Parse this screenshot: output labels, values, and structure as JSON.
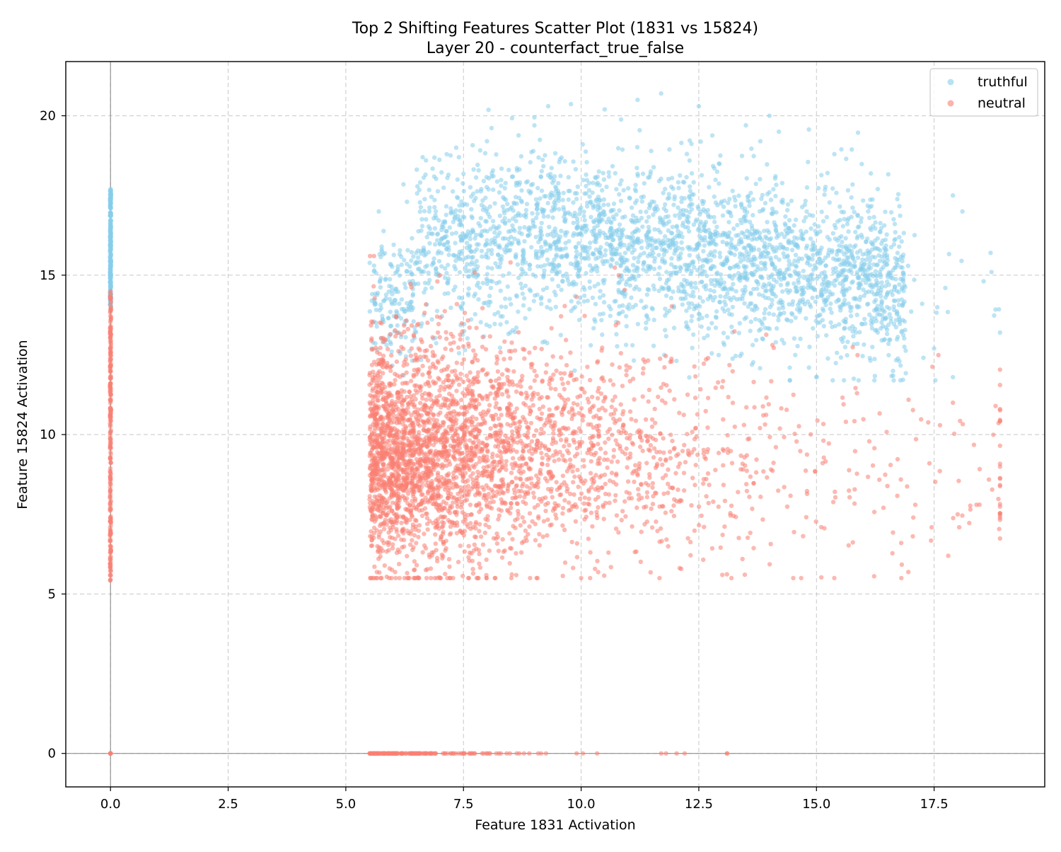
{
  "chart_data": {
    "type": "scatter",
    "title": "Top 2 Shifting Features Scatter Plot (1831 vs 15824)",
    "subtitle": "Layer 20 - counterfact_true_false",
    "xlabel": "Feature 1831 Activation",
    "ylabel": "Feature 15824 Activation",
    "xlim": [
      -0.95,
      19.85
    ],
    "ylim": [
      -1.05,
      21.7
    ],
    "xticks": [
      0.0,
      2.5,
      5.0,
      7.5,
      10.0,
      12.5,
      15.0,
      17.5
    ],
    "xtick_labels": [
      "0.0",
      "2.5",
      "5.0",
      "7.5",
      "10.0",
      "12.5",
      "15.0",
      "17.5"
    ],
    "yticks": [
      0,
      5,
      10,
      15,
      20
    ],
    "ytick_labels": [
      "0",
      "5",
      "10",
      "15",
      "20"
    ],
    "grid": true,
    "reference_lines": {
      "x": 0,
      "y": 0
    },
    "legend_position": "top-right",
    "series": [
      {
        "name": "truthful",
        "color": "#87ceeb",
        "clusters": [
          {
            "shape": "vertical-line",
            "x": 0.0,
            "y_range": [
              14.0,
              17.7
            ]
          },
          {
            "shape": "cloud",
            "x_range": [
              5.5,
              18.9
            ],
            "y_range": [
              11.7,
              20.7
            ],
            "center": [
              11.0,
              15.8
            ]
          }
        ],
        "sample_points": [
          [
            0,
            17.7
          ],
          [
            0,
            16.9
          ],
          [
            9.3,
            20.3
          ],
          [
            10.5,
            20.2
          ],
          [
            11.2,
            20.5
          ],
          [
            11.7,
            20.7
          ],
          [
            12.5,
            20.3
          ],
          [
            14.0,
            20.0
          ],
          [
            14.2,
            19.5
          ],
          [
            17.9,
            17.5
          ],
          [
            18.1,
            17.0
          ],
          [
            18.7,
            15.7
          ],
          [
            18.9,
            13.2
          ],
          [
            17.9,
            11.8
          ],
          [
            17.5,
            12.7
          ],
          [
            15.0,
            11.8
          ],
          [
            5.6,
            15.3
          ],
          [
            5.7,
            17.0
          ],
          [
            6.3,
            17.3
          ],
          [
            8.0,
            19.2
          ],
          [
            13.5,
            19.7
          ],
          [
            16.5,
            14.0
          ]
        ]
      },
      {
        "name": "neutral",
        "color": "#fa8072",
        "clusters": [
          {
            "shape": "vertical-line",
            "x": 0.0,
            "y_range": [
              5.4,
              14.5
            ]
          },
          {
            "shape": "cloud",
            "x_range": [
              5.5,
              18.9
            ],
            "y_range": [
              5.5,
              15.6
            ],
            "center": [
              8.0,
              9.5
            ]
          },
          {
            "shape": "horizontal-line",
            "y": 0.0,
            "x_range": [
              5.5,
              13.1
            ]
          },
          {
            "point": [
              0.0,
              0.0
            ]
          }
        ],
        "sample_points": [
          [
            0,
            0
          ],
          [
            13.1,
            0
          ],
          [
            12.2,
            0
          ],
          [
            11.7,
            0
          ],
          [
            5.6,
            15.6
          ],
          [
            7.0,
            15.0
          ],
          [
            8.5,
            15.4
          ],
          [
            10.8,
            15.0
          ],
          [
            17.9,
            11.0
          ],
          [
            18.0,
            7.5
          ],
          [
            18.4,
            7.8
          ],
          [
            18.9,
            10.8
          ],
          [
            17.8,
            6.2
          ],
          [
            17.4,
            9.1
          ],
          [
            13.0,
            5.6
          ],
          [
            10.0,
            5.5
          ],
          [
            5.6,
            5.5
          ],
          [
            16.8,
            6.6
          ],
          [
            17.1,
            7.8
          ]
        ]
      }
    ]
  }
}
